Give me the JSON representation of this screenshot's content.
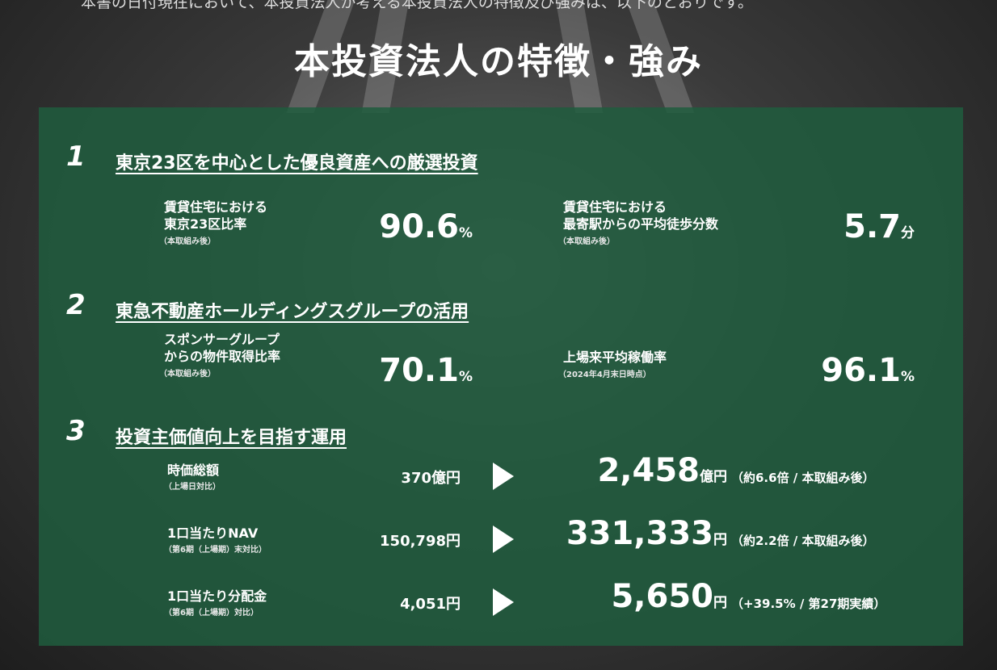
{
  "intro": "本書の日付現在において、本投資法人が考える本投資法人の特徴及び強みは、以下のとおりです。",
  "title": "本投資法人の特徴・強み",
  "sections": [
    {
      "number": "1",
      "heading": "東京23区を中心とした優良資産への厳選投資",
      "items": [
        {
          "label": [
            "賃貸住宅における",
            "東京23区比率"
          ],
          "note": "（本取組み後）",
          "value": "90.6",
          "unit": "%"
        },
        {
          "label": [
            "賃貸住宅における",
            "最寄駅からの平均徒歩分数"
          ],
          "note": "（本取組み後）",
          "value": "5.7",
          "unit": "分"
        }
      ]
    },
    {
      "number": "2",
      "heading": "東急不動産ホールディングスグループの活用",
      "items": [
        {
          "label": [
            "スポンサーグループ",
            "からの物件取得比率"
          ],
          "note": "（本取組み後）",
          "value": "70.1",
          "unit": "%"
        },
        {
          "label": [
            "上場来平均稼働率"
          ],
          "note": "（2024年4月末日時点）",
          "value": "96.1",
          "unit": "%"
        }
      ]
    },
    {
      "number": "3",
      "heading": "投資主価値向上を目指す運用",
      "rows": [
        {
          "label": "時価総額",
          "note": "（上場日対比）",
          "before": "370億円",
          "after": "2,458",
          "unit": "億円",
          "comparison": "（約6.6倍 / 本取組み後）"
        },
        {
          "label": "1口当たりNAV",
          "note": "（第6期（上場期）末対比）",
          "before": "150,798円",
          "after": "331,333",
          "unit": "円",
          "comparison": "（約2.2倍 / 本取組み後）"
        },
        {
          "label": "1口当たり分配金",
          "note": "（第6期（上場期）対比）",
          "before": "4,051円",
          "after": "5,650",
          "unit": "円",
          "comparison": "（+39.5% / 第27期実績）"
        }
      ]
    }
  ]
}
